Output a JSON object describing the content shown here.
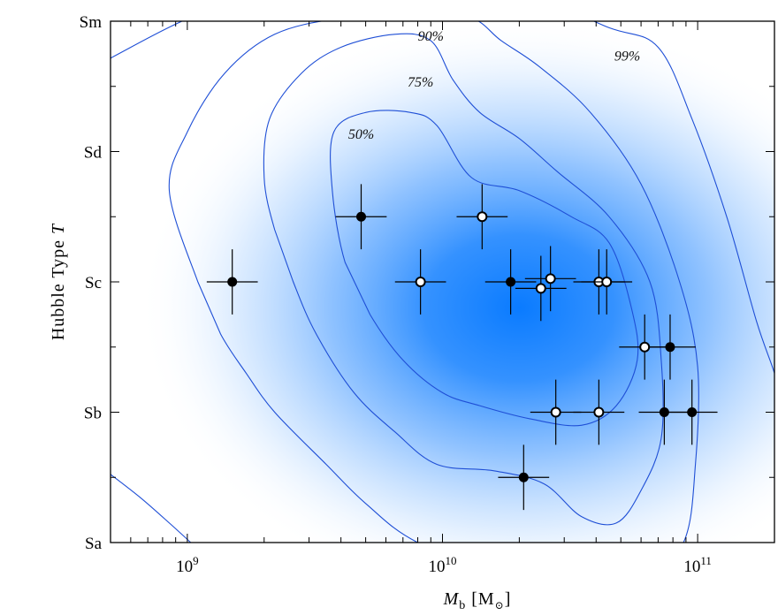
{
  "chart_data": {
    "type": "scatter",
    "xlabel_main": "M",
    "xlabel_sub": "b",
    "xlabel_unit": "[M",
    "xlabel_unit_sub": "⊙",
    "xlabel_unit_close": "]",
    "ylabel_main": "Hubble Type ",
    "ylabel_var": "T",
    "xscale": "log",
    "xlim": [
      500000000,
      200000000000
    ],
    "ylim": [
      1,
      9
    ],
    "x_ticks": [
      {
        "value": 1000000000,
        "base": "10",
        "exp": "9"
      },
      {
        "value": 10000000000,
        "base": "10",
        "exp": "10"
      },
      {
        "value": 100000000000,
        "base": "10",
        "exp": "11"
      }
    ],
    "y_ticks": [
      {
        "value": 1,
        "label": "Sa"
      },
      {
        "value": 3,
        "label": "Sb"
      },
      {
        "value": 5,
        "label": "Sc"
      },
      {
        "value": 7,
        "label": "Sd"
      },
      {
        "value": 9,
        "label": "Sm"
      }
    ],
    "contour_labels": [
      {
        "text": "90%",
        "x": 9000000000,
        "y": 8.7
      },
      {
        "text": "99%",
        "x": 53000000000,
        "y": 8.4
      },
      {
        "text": "75%",
        "x": 8200000000,
        "y": 8.0
      },
      {
        "text": "50%",
        "x": 4800000000,
        "y": 7.2
      }
    ],
    "series": [
      {
        "name": "filled",
        "marker": "filled-circle",
        "points": [
          {
            "x": 1500000000,
            "y": 5.0,
            "xerr_dex": 0.1,
            "yerr": 0.5
          },
          {
            "x": 4800000000,
            "y": 6.0,
            "xerr_dex": 0.1,
            "yerr": 0.5
          },
          {
            "x": 18500000000,
            "y": 5.0,
            "xerr_dex": 0.1,
            "yerr": 0.5
          },
          {
            "x": 20800000000,
            "y": 2.0,
            "xerr_dex": 0.1,
            "yerr": 0.5
          },
          {
            "x": 74000000000,
            "y": 3.0,
            "xerr_dex": 0.1,
            "yerr": 0.5
          },
          {
            "x": 78000000000,
            "y": 4.0,
            "xerr_dex": 0.1,
            "yerr": 0.5
          },
          {
            "x": 95000000000,
            "y": 3.0,
            "xerr_dex": 0.1,
            "yerr": 0.5
          }
        ]
      },
      {
        "name": "open",
        "marker": "open-circle",
        "points": [
          {
            "x": 8200000000,
            "y": 5.0,
            "xerr_dex": 0.1,
            "yerr": 0.5
          },
          {
            "x": 14300000000,
            "y": 6.0,
            "xerr_dex": 0.1,
            "yerr": 0.5
          },
          {
            "x": 24300000000,
            "y": 4.9,
            "xerr_dex": 0.1,
            "yerr": 0.5
          },
          {
            "x": 26500000000,
            "y": 5.05,
            "xerr_dex": 0.1,
            "yerr": 0.5
          },
          {
            "x": 27800000000,
            "y": 3.0,
            "xerr_dex": 0.1,
            "yerr": 0.5
          },
          {
            "x": 41000000000,
            "y": 5.0,
            "xerr_dex": 0.1,
            "yerr": 0.5
          },
          {
            "x": 44000000000,
            "y": 5.0,
            "xerr_dex": 0.1,
            "yerr": 0.5
          },
          {
            "x": 41000000000,
            "y": 3.0,
            "xerr_dex": 0.1,
            "yerr": 0.5
          },
          {
            "x": 62000000000,
            "y": 4.0,
            "xerr_dex": 0.1,
            "yerr": 0.5
          }
        ]
      }
    ],
    "density": {
      "peak_x": 20000000000,
      "peak_y": 4.6,
      "colormap": [
        "#ffffff",
        "#0a7bff"
      ]
    },
    "contours": [
      {
        "level": "50%",
        "points": [
          [
            4150000000,
            5.3
          ],
          [
            3700000000,
            6.4
          ],
          [
            3750000000,
            7.3
          ],
          [
            5000000000,
            7.6
          ],
          [
            7500000000,
            7.6
          ],
          [
            9500000000,
            7.4
          ],
          [
            13000000000,
            6.6
          ],
          [
            20000000000,
            6.4
          ],
          [
            32000000000,
            6.0
          ],
          [
            45000000000,
            5.6
          ],
          [
            55000000000,
            4.6
          ],
          [
            58000000000,
            3.8
          ],
          [
            48000000000,
            3.1
          ],
          [
            35000000000,
            2.8
          ],
          [
            22000000000,
            2.9
          ],
          [
            14000000000,
            3.1
          ],
          [
            10000000000,
            3.3
          ],
          [
            7000000000,
            3.8
          ],
          [
            5200000000,
            4.5
          ],
          [
            4150000000,
            5.3
          ]
        ]
      },
      {
        "level": "75%",
        "points": [
          [
            2200000000,
            5.8
          ],
          [
            2000000000,
            6.6
          ],
          [
            2100000000,
            7.5
          ],
          [
            2800000000,
            8.2
          ],
          [
            4000000000,
            8.6
          ],
          [
            6500000000,
            8.8
          ],
          [
            9000000000,
            8.7
          ],
          [
            11000000000,
            8.1
          ],
          [
            14000000000,
            7.6
          ],
          [
            20000000000,
            7.2
          ],
          [
            28000000000,
            6.7
          ],
          [
            45000000000,
            6.0
          ],
          [
            65000000000,
            5.0
          ],
          [
            72000000000,
            3.8
          ],
          [
            72000000000,
            2.6
          ],
          [
            60000000000,
            1.8
          ],
          [
            48000000000,
            1.3
          ],
          [
            35000000000,
            1.4
          ],
          [
            25000000000,
            1.9
          ],
          [
            16000000000,
            2.1
          ],
          [
            9500000000,
            2.2
          ],
          [
            6500000000,
            2.7
          ],
          [
            4500000000,
            3.3
          ],
          [
            3200000000,
            4.2
          ],
          [
            2600000000,
            5.0
          ],
          [
            2200000000,
            5.8
          ]
        ]
      },
      {
        "level": "90%",
        "points": [
          [
            1100000000,
            5.0
          ],
          [
            850000000,
            6.4
          ],
          [
            1000000000,
            7.3
          ],
          [
            1400000000,
            8.2
          ],
          [
            2200000000,
            8.8
          ],
          [
            4000000000,
            9.05
          ],
          [
            8000000000,
            9.15
          ],
          [
            13000000000,
            9.05
          ],
          [
            17000000000,
            8.7
          ],
          [
            24000000000,
            8.3
          ],
          [
            38000000000,
            7.6
          ],
          [
            60000000000,
            6.5
          ],
          [
            85000000000,
            5.0
          ],
          [
            100000000000,
            3.7
          ],
          [
            98000000000,
            2.2
          ],
          [
            88000000000,
            1.0
          ],
          [
            60000000000,
            0.4
          ],
          [
            20000000000,
            0.4
          ],
          [
            8000000000,
            1.0
          ],
          [
            5000000000,
            1.6
          ],
          [
            3500000000,
            2.2
          ],
          [
            2200000000,
            3.0
          ],
          [
            1700000000,
            3.6
          ],
          [
            1350000000,
            4.2
          ],
          [
            1100000000,
            5.0
          ]
        ]
      },
      {
        "level": "99%",
        "points": [
          [
            480000000,
            8.4
          ],
          [
            1400000000,
            9.25
          ],
          [
            5000000000,
            9.5
          ],
          [
            20000000000,
            9.4
          ],
          [
            45000000000,
            8.9
          ],
          [
            70000000000,
            8.6
          ],
          [
            95000000000,
            7.5
          ],
          [
            130000000000,
            6.0
          ],
          [
            170000000000,
            4.4
          ],
          [
            200000000000,
            3.6
          ],
          [
            220000000000,
            3.0
          ]
        ]
      },
      {
        "level": "99%",
        "points": [
          [
            480000000,
            2.1
          ],
          [
            650000000,
            1.7
          ],
          [
            850000000,
            1.3
          ],
          [
            1100000000,
            0.9
          ]
        ]
      }
    ]
  }
}
